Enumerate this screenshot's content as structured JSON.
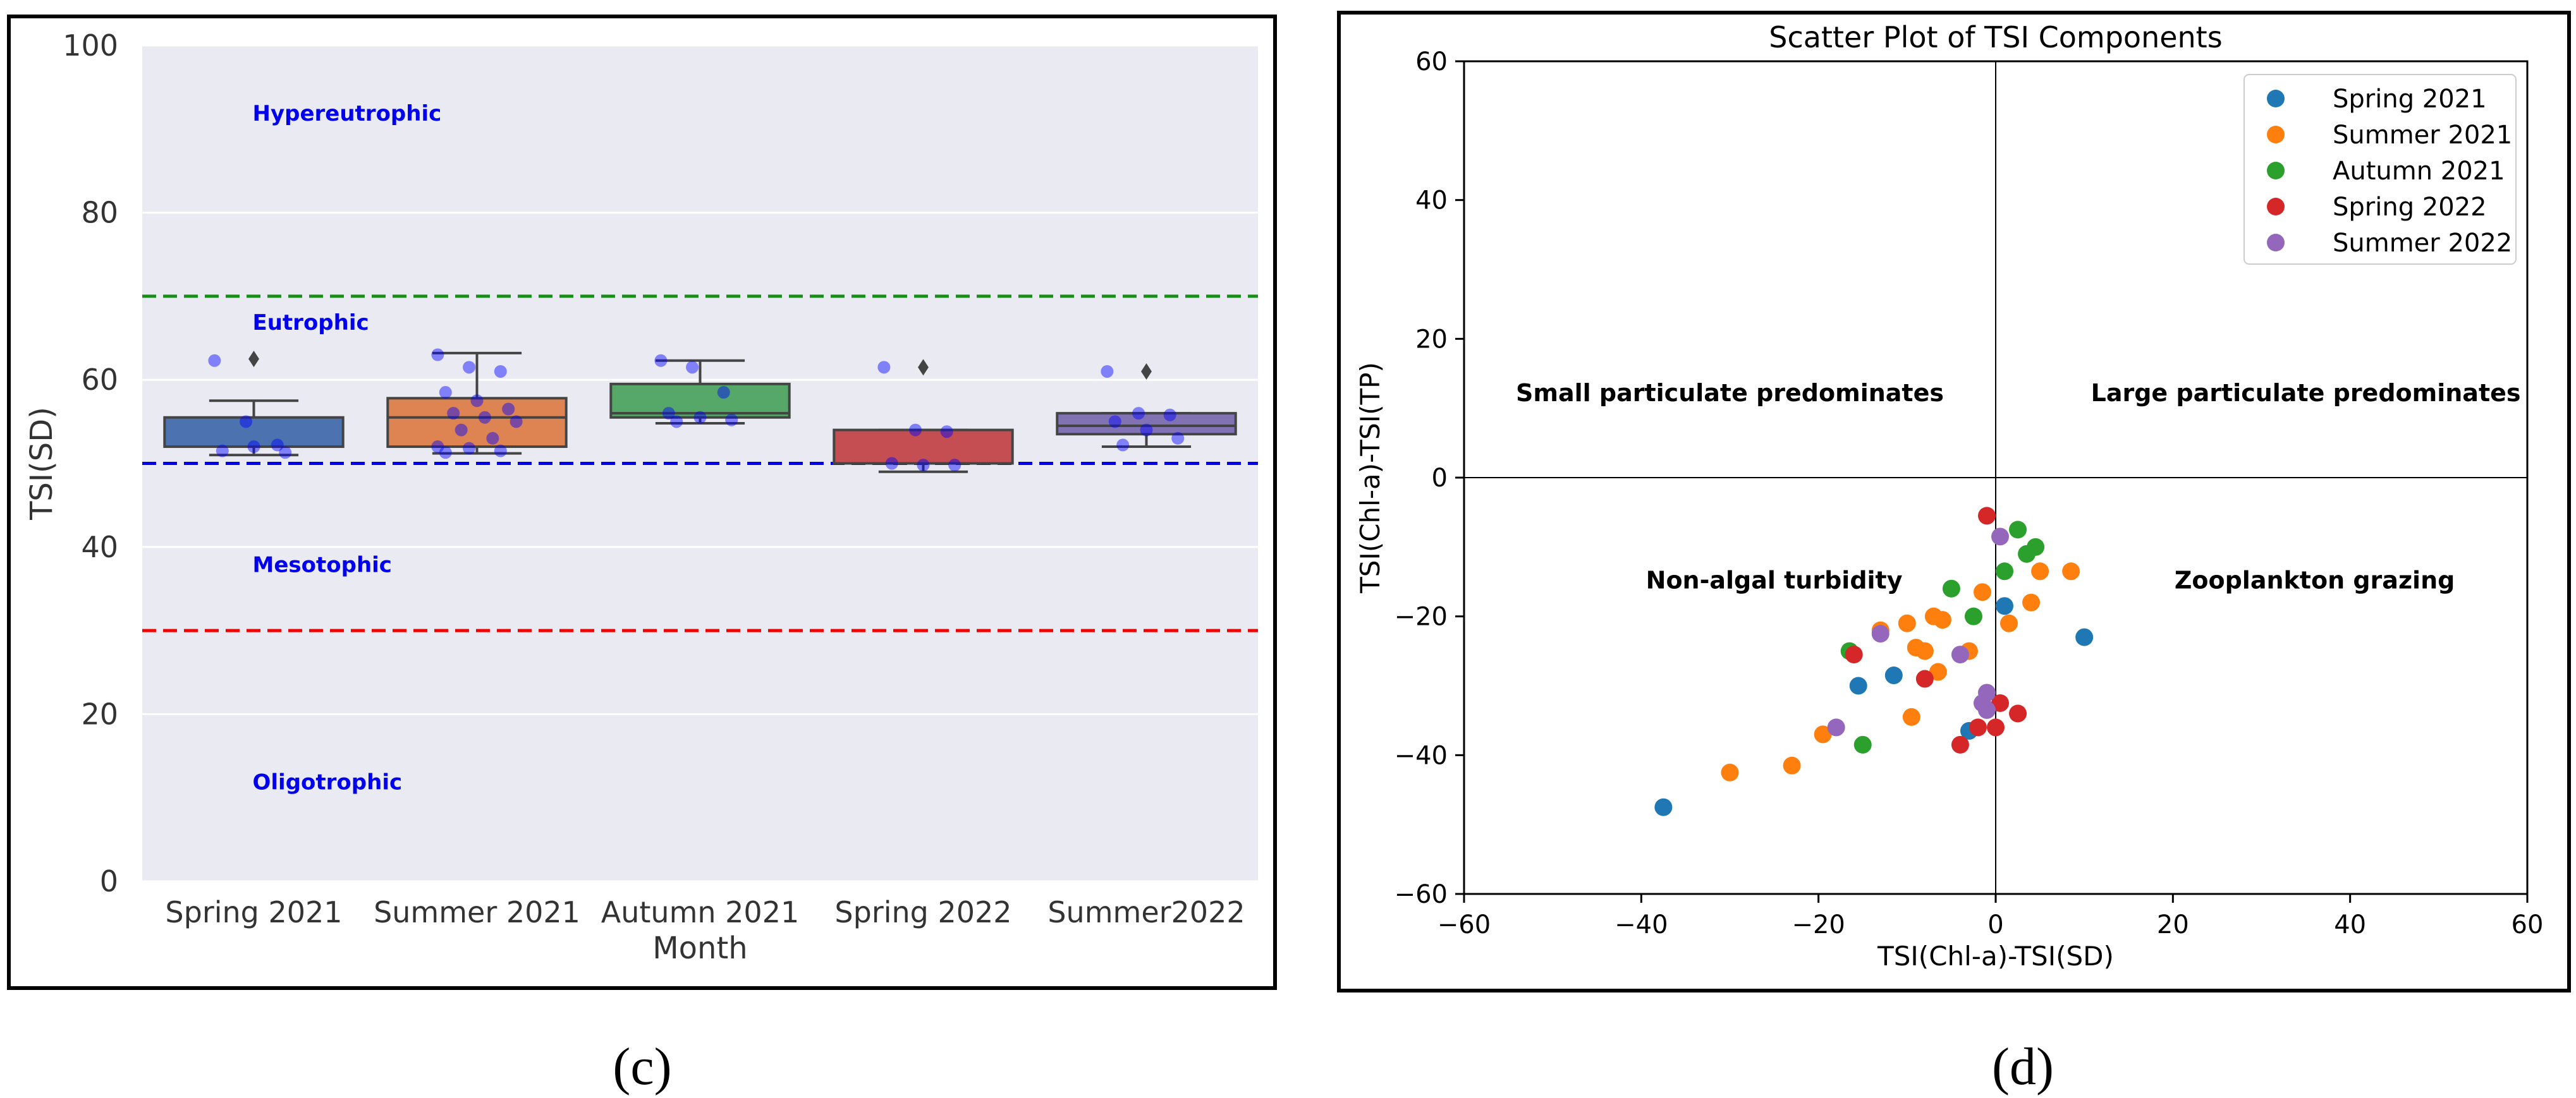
{
  "panel_c": {
    "caption": "(c)",
    "chart_data": {
      "type": "box",
      "ylabel": "TSI(SD)",
      "xlabel": "Month",
      "ylim": [
        0,
        100
      ],
      "yticks": [
        0,
        20,
        40,
        60,
        80,
        100
      ],
      "categories": [
        "Spring 2021",
        "Summer 2021",
        "Autumn 2021",
        "Spring 2022",
        "Summer2022"
      ],
      "colors": [
        "#4c72b0",
        "#dd8452",
        "#55a868",
        "#c44e52",
        "#8172b3"
      ],
      "boxes": [
        {
          "q1": 52,
          "median": 52,
          "q3": 55.5,
          "whislo": 51,
          "whishi": 57.5,
          "fliers": [
            62.5
          ]
        },
        {
          "q1": 52,
          "median": 55.5,
          "q3": 57.8,
          "whislo": 51.2,
          "whishi": 63.2,
          "fliers": []
        },
        {
          "q1": 55.5,
          "median": 56,
          "q3": 59.5,
          "whislo": 54.8,
          "whishi": 62.3,
          "fliers": []
        },
        {
          "q1": 50,
          "median": 50,
          "q3": 54,
          "whislo": 49,
          "whishi": 54,
          "fliers": [
            61.5
          ]
        },
        {
          "q1": 53.5,
          "median": 54.5,
          "q3": 56,
          "whislo": 52,
          "whishi": 56,
          "fliers": [
            61
          ]
        }
      ],
      "points": [
        [
          62.3,
          55,
          52.2,
          51.5,
          52,
          51.3
        ],
        [
          63,
          61.5,
          61,
          58.5,
          57.5,
          56.5,
          56,
          55.5,
          55,
          54,
          53,
          52,
          51.8,
          51.5,
          51.3
        ],
        [
          62.3,
          61.5,
          58.5,
          56,
          55.5,
          55.2,
          55
        ],
        [
          61.5,
          54,
          53.8,
          50,
          49.8,
          49.8
        ],
        [
          61,
          56,
          55.8,
          55,
          54,
          53,
          52.2
        ]
      ],
      "reference_lines": [
        {
          "y": 70,
          "color": "#1a8c1a",
          "style": "dashed"
        },
        {
          "y": 50,
          "color": "#0000ee",
          "style": "dashed"
        },
        {
          "y": 30,
          "color": "#ee0000",
          "style": "dashed"
        }
      ],
      "annotations": [
        {
          "text": "Hypereutrophic",
          "x": 0,
          "y": 91
        },
        {
          "text": "Eutrophic",
          "x": 0,
          "y": 66
        },
        {
          "text": "Mesotophic",
          "x": 0,
          "y": 37
        },
        {
          "text": "Oligotrophic",
          "x": 0,
          "y": 11
        }
      ],
      "annotation_color": "#0000ee"
    }
  },
  "panel_d": {
    "caption": "(d)",
    "chart_data": {
      "type": "scatter",
      "title": "Scatter Plot of TSI Components",
      "xlabel": "TSI(Chl-a)-TSI(SD)",
      "ylabel": "TSI(Chl-a)-TSI(TP)",
      "xlim": [
        -60,
        60
      ],
      "ylim": [
        -60,
        60
      ],
      "xticks": [
        -60,
        -40,
        -20,
        0,
        20,
        40,
        60
      ],
      "yticks": [
        -60,
        -40,
        -20,
        0,
        20,
        40,
        60
      ],
      "legend_position": "top-right",
      "series": [
        {
          "name": "Spring 2021",
          "color": "#1f77b4",
          "x": [
            -37.5,
            -15.5,
            -11.5,
            -3,
            1,
            10
          ],
          "y": [
            -47.5,
            -30,
            -28.5,
            -36.5,
            -18.5,
            -23
          ]
        },
        {
          "name": "Summer 2021",
          "color": "#ff7f0e",
          "x": [
            -30,
            -23,
            -19.5,
            -13,
            -10,
            -9.5,
            -9,
            -8,
            -7,
            -6.5,
            -6,
            -3,
            -1.5,
            1.5,
            4,
            5,
            8.5
          ],
          "y": [
            -42.5,
            -41.5,
            -37,
            -22,
            -21,
            -34.5,
            -24.5,
            -25,
            -20,
            -28,
            -20.5,
            -25,
            -16.5,
            -21,
            -18,
            -13.5,
            -13.5
          ]
        },
        {
          "name": "Autumn 2021",
          "color": "#2ca02c",
          "x": [
            -16.5,
            -15,
            -5,
            -2.5,
            1,
            2.5,
            3.5,
            4.5
          ],
          "y": [
            -25,
            -38.5,
            -16,
            -20,
            -13.5,
            -7.5,
            -11,
            -10
          ]
        },
        {
          "name": "Spring 2022",
          "color": "#d62728",
          "x": [
            -16,
            -8,
            -4,
            -2,
            -1,
            0,
            0.5,
            2.5
          ],
          "y": [
            -25.5,
            -29,
            -38.5,
            -36,
            -5.5,
            -36,
            -32.5,
            -34
          ]
        },
        {
          "name": "Summer 2022",
          "color": "#9467bd",
          "x": [
            -18,
            -13,
            -4,
            -1.5,
            -1,
            -1,
            0.5
          ],
          "y": [
            -36,
            -22.5,
            -25.5,
            -32.5,
            -31,
            -33.5,
            -8.5
          ]
        }
      ],
      "annotations": [
        {
          "text": "Small particulate predominates",
          "x": -30,
          "y": 11
        },
        {
          "text": "Large particulate predominates",
          "x": 35,
          "y": 11
        },
        {
          "text": "Non-algal turbidity",
          "x": -25,
          "y": -16
        },
        {
          "text": "Zooplankton grazing",
          "x": 36,
          "y": -16
        }
      ]
    }
  }
}
